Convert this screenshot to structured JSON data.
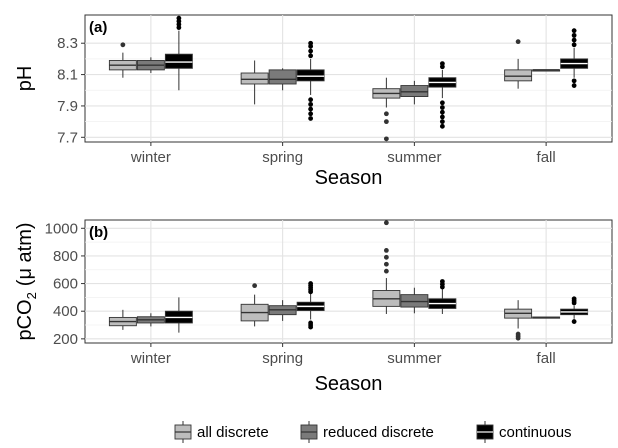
{
  "figure": {
    "legend": {
      "position": "bottom",
      "items": [
        {
          "label": "all discrete",
          "fill": "#bdbdbd"
        },
        {
          "label": "reduced discrete",
          "fill": "#7a7a7a"
        },
        {
          "label": "continuous",
          "fill": "#000000"
        }
      ]
    }
  },
  "chart_data": [
    {
      "type": "box",
      "panel_tag": "(a)",
      "xlabel": "Season",
      "ylabel": "pH",
      "categories": [
        "winter",
        "spring",
        "summer",
        "fall"
      ],
      "ylim": [
        7.67,
        8.48
      ],
      "yticks": [
        7.7,
        7.9,
        8.1,
        8.3
      ],
      "grid": true,
      "series": [
        {
          "name": "all discrete",
          "fill": "#bdbdbd",
          "boxes": [
            {
              "q1": 8.13,
              "median": 8.16,
              "q3": 8.19,
              "whisker_low": 8.08,
              "whisker_high": 8.24,
              "outliers": [
                8.29
              ]
            },
            {
              "q1": 8.04,
              "median": 8.07,
              "q3": 8.11,
              "whisker_low": 7.91,
              "whisker_high": 8.19,
              "outliers": []
            },
            {
              "q1": 7.95,
              "median": 7.98,
              "q3": 8.01,
              "whisker_low": 7.89,
              "whisker_high": 8.08,
              "outliers": [
                7.85,
                7.8,
                7.69
              ]
            },
            {
              "q1": 8.06,
              "median": 8.09,
              "q3": 8.13,
              "whisker_low": 8.01,
              "whisker_high": 8.2,
              "outliers": [
                8.31
              ]
            }
          ]
        },
        {
          "name": "reduced discrete",
          "fill": "#7a7a7a",
          "boxes": [
            {
              "q1": 8.13,
              "median": 8.16,
              "q3": 8.19,
              "whisker_low": 8.11,
              "whisker_high": 8.21,
              "outliers": []
            },
            {
              "q1": 8.04,
              "median": 8.07,
              "q3": 8.13,
              "whisker_low": 8.0,
              "whisker_high": 8.14,
              "outliers": []
            },
            {
              "q1": 7.96,
              "median": 7.99,
              "q3": 8.03,
              "whisker_low": 7.91,
              "whisker_high": 8.06,
              "outliers": []
            },
            {
              "q1": 8.13,
              "median": 8.13,
              "q3": 8.13,
              "whisker_low": 8.13,
              "whisker_high": 8.13,
              "outliers": []
            }
          ]
        },
        {
          "name": "continuous",
          "fill": "#000000",
          "boxes": [
            {
              "q1": 8.14,
              "median": 8.18,
              "q3": 8.23,
              "whisker_low": 8.0,
              "whisker_high": 8.38,
              "outliers": [
                8.4,
                8.42,
                8.44,
                8.46
              ]
            },
            {
              "q1": 8.06,
              "median": 8.09,
              "q3": 8.13,
              "whisker_low": 7.97,
              "whisker_high": 8.2,
              "outliers": [
                7.82,
                7.85,
                7.88,
                7.91,
                7.94,
                8.22,
                8.25,
                8.28,
                8.3
              ]
            },
            {
              "q1": 8.02,
              "median": 8.05,
              "q3": 8.08,
              "whisker_low": 7.95,
              "whisker_high": 8.13,
              "outliers": [
                7.77,
                7.8,
                7.83,
                7.86,
                7.89,
                7.92,
                8.15,
                8.17
              ]
            },
            {
              "q1": 8.14,
              "median": 8.17,
              "q3": 8.2,
              "whisker_low": 8.08,
              "whisker_high": 8.27,
              "outliers": [
                8.03,
                8.06,
                8.29,
                8.32,
                8.35,
                8.38
              ]
            }
          ]
        }
      ]
    },
    {
      "type": "box",
      "panel_tag": "(b)",
      "xlabel": "Season",
      "ylabel_main": "pCO",
      "ylabel_sub": "2",
      "ylabel_unit": "(μ atm)",
      "categories": [
        "winter",
        "spring",
        "summer",
        "fall"
      ],
      "ylim": [
        170,
        1060
      ],
      "yticks": [
        200,
        400,
        600,
        800,
        1000
      ],
      "grid": true,
      "series": [
        {
          "name": "all discrete",
          "fill": "#bdbdbd",
          "boxes": [
            {
              "q1": 295,
              "median": 325,
              "q3": 355,
              "whisker_low": 265,
              "whisker_high": 410,
              "outliers": []
            },
            {
              "q1": 330,
              "median": 390,
              "q3": 450,
              "whisker_low": 290,
              "whisker_high": 520,
              "outliers": [
                585
              ]
            },
            {
              "q1": 435,
              "median": 490,
              "q3": 550,
              "whisker_low": 380,
              "whisker_high": 640,
              "outliers": [
                690,
                740,
                790,
                840,
                1040
              ]
            },
            {
              "q1": 350,
              "median": 385,
              "q3": 415,
              "whisker_low": 275,
              "whisker_high": 480,
              "outliers": [
                205,
                220,
                235
              ]
            }
          ]
        },
        {
          "name": "reduced discrete",
          "fill": "#7a7a7a",
          "boxes": [
            {
              "q1": 315,
              "median": 338,
              "q3": 360,
              "whisker_low": 290,
              "whisker_high": 385,
              "outliers": []
            },
            {
              "q1": 375,
              "median": 410,
              "q3": 440,
              "whisker_low": 330,
              "whisker_high": 480,
              "outliers": []
            },
            {
              "q1": 430,
              "median": 470,
              "q3": 520,
              "whisker_low": 385,
              "whisker_high": 570,
              "outliers": []
            },
            {
              "q1": 352,
              "median": 355,
              "q3": 358,
              "whisker_low": 352,
              "whisker_high": 358,
              "outliers": []
            }
          ]
        },
        {
          "name": "continuous",
          "fill": "#000000",
          "boxes": [
            {
              "q1": 315,
              "median": 355,
              "q3": 400,
              "whisker_low": 245,
              "whisker_high": 500,
              "outliers": []
            },
            {
              "q1": 405,
              "median": 435,
              "q3": 465,
              "whisker_low": 340,
              "whisker_high": 530,
              "outliers": [
                285,
                300,
                315,
                540,
                555,
                570,
                585,
                600
              ]
            },
            {
              "q1": 420,
              "median": 455,
              "q3": 490,
              "whisker_low": 380,
              "whisker_high": 560,
              "outliers": [
                575,
                595,
                615
              ]
            },
            {
              "q1": 375,
              "median": 395,
              "q3": 415,
              "whisker_low": 345,
              "whisker_high": 440,
              "outliers": [
                325,
                460,
                475,
                490
              ]
            }
          ]
        }
      ]
    }
  ]
}
